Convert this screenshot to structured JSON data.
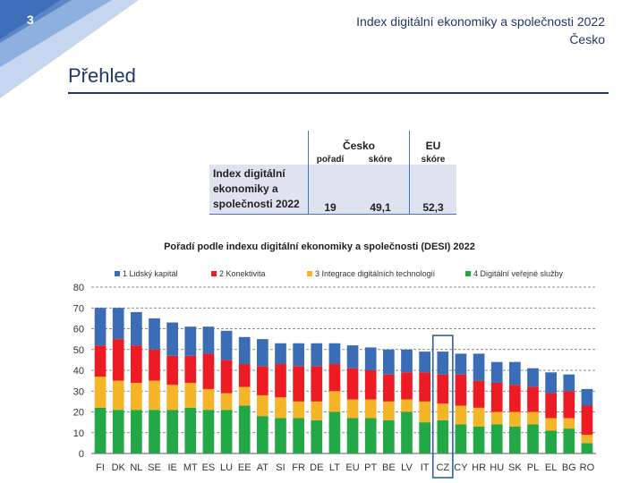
{
  "header": {
    "page_number": "3",
    "doc_title": "Index digitální ekonomiky a společnosti 2022",
    "country": "Česko",
    "section_title": "Přehled"
  },
  "score_table": {
    "col_country": "Česko",
    "col_eu": "EU",
    "sub_rank": "pořadí",
    "sub_score": "skóre",
    "sub_eu_score": "skóre",
    "row_label_line1": "Index digitální",
    "row_label_line2": "ekonomiky a",
    "row_label_line3": "společnosti 2022",
    "rank": "19",
    "score": "49,1",
    "eu_score": "52,3"
  },
  "chart_data": {
    "type": "bar",
    "stacked": true,
    "title": "Pořadí podle indexu digitální ekonomiky a společnosti (DESI) 2022",
    "categories": [
      "FI",
      "DK",
      "NL",
      "SE",
      "IE",
      "MT",
      "ES",
      "LU",
      "EE",
      "AT",
      "SI",
      "FR",
      "DE",
      "LT",
      "EU",
      "PT",
      "BE",
      "LV",
      "IT",
      "CZ",
      "CY",
      "HR",
      "HU",
      "SK",
      "PL",
      "EL",
      "BG",
      "RO"
    ],
    "highlight": "CZ",
    "ylim": [
      0,
      80
    ],
    "yticks": [
      0,
      10,
      20,
      30,
      40,
      50,
      60,
      70,
      80
    ],
    "legend_position": "top",
    "series": [
      {
        "name": "4 Digitální veřejné služby",
        "color": "#22a846",
        "values": [
          22,
          21,
          21,
          21,
          21,
          22,
          21,
          21,
          23,
          18,
          17,
          17,
          16,
          20,
          17,
          17,
          16,
          20,
          15,
          16,
          14,
          13,
          14,
          13,
          14,
          11,
          12,
          5
        ]
      },
      {
        "name": "3 Integrace digitálních technologií",
        "color": "#f5b529",
        "values": [
          15,
          14,
          13,
          14,
          12,
          12,
          10,
          8,
          9,
          10,
          10,
          8,
          9,
          10,
          9,
          9,
          9,
          6,
          10,
          8,
          9,
          9,
          6,
          7,
          6,
          6,
          5,
          4
        ]
      },
      {
        "name": "2 Konektivita",
        "color": "#ed1c24",
        "values": [
          15,
          20,
          18,
          15,
          14,
          13,
          17,
          16,
          11,
          14,
          16,
          17,
          17,
          13,
          15,
          14,
          13,
          13,
          14,
          14,
          15,
          13,
          14,
          13,
          12,
          12,
          13,
          14
        ]
      },
      {
        "name": "1 Lidský kapitál",
        "color": "#3a6db5",
        "values": [
          18,
          15,
          16,
          15,
          16,
          14,
          13,
          14,
          13,
          13,
          10,
          11,
          11,
          10,
          11,
          11,
          12,
          11,
          10,
          11,
          10,
          13,
          10,
          11,
          9,
          10,
          8,
          8
        ]
      }
    ]
  }
}
